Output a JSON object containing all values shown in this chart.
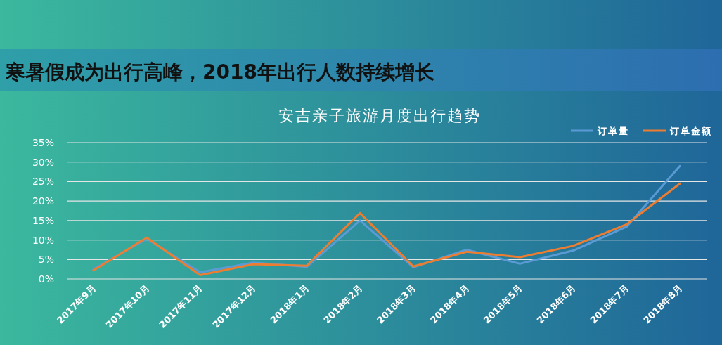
{
  "chart_data": {
    "type": "line",
    "title": "寒暑假成为出行高峰，2018年出行人数持续增长",
    "subtitle": "安吉亲子旅游月度出行趋势",
    "categories": [
      "2017年9月",
      "2017年10月",
      "2017年11月",
      "2017年12月",
      "2018年1月",
      "2018年2月",
      "2018年3月",
      "2018年4月",
      "2018年5月",
      "2018年6月",
      "2018年7月",
      "2018年8月"
    ],
    "series": [
      {
        "name": "订单量",
        "color": "#5b9bd5",
        "values": [
          2.5,
          10.3,
          1.7,
          4.2,
          3.1,
          15.0,
          3.0,
          7.5,
          3.9,
          7.3,
          13.4,
          29.0
        ]
      },
      {
        "name": "订单金额",
        "color": "#ed7d31",
        "values": [
          2.2,
          10.6,
          1.0,
          3.8,
          3.4,
          16.9,
          3.2,
          7.0,
          5.6,
          8.5,
          14.0,
          24.5
        ]
      }
    ],
    "ylim": [
      0,
      35
    ],
    "yticks": [
      {
        "value": 0,
        "label": "0%"
      },
      {
        "value": 5,
        "label": "5%"
      },
      {
        "value": 10,
        "label": "10%"
      },
      {
        "value": 15,
        "label": "15%"
      },
      {
        "value": 20,
        "label": "20%"
      },
      {
        "value": 25,
        "label": "25%"
      },
      {
        "value": 30,
        "label": "30%"
      },
      {
        "value": 35,
        "label": "35%"
      }
    ],
    "grid": "y",
    "legend": "top right",
    "marker": "none",
    "line_style": "solid"
  }
}
